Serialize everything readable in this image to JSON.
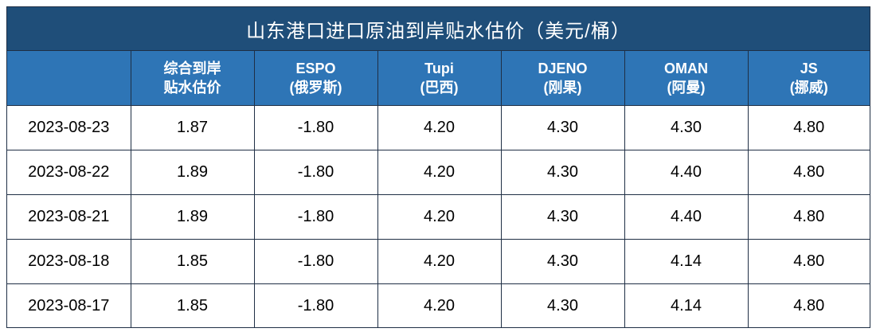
{
  "chart_data": {
    "type": "table",
    "title": "山东港口进口原油到岸贴水估价（美元/桶）",
    "columns": [
      {
        "line1": "",
        "line2": ""
      },
      {
        "line1": "综合到岸",
        "line2": "贴水估价"
      },
      {
        "line1": "ESPO",
        "line2": "(俄罗斯)"
      },
      {
        "line1": "Tupi",
        "line2": "(巴西)"
      },
      {
        "line1": "DJENO",
        "line2": "(刚果)"
      },
      {
        "line1": "OMAN",
        "line2": "(阿曼)"
      },
      {
        "line1": "JS",
        "line2": "(挪威)"
      }
    ],
    "rows": [
      [
        "2023-08-23",
        "1.87",
        "-1.80",
        "4.20",
        "4.30",
        "4.30",
        "4.80"
      ],
      [
        "2023-08-22",
        "1.89",
        "-1.80",
        "4.20",
        "4.30",
        "4.40",
        "4.80"
      ],
      [
        "2023-08-21",
        "1.89",
        "-1.80",
        "4.20",
        "4.30",
        "4.40",
        "4.80"
      ],
      [
        "2023-08-18",
        "1.85",
        "-1.80",
        "4.20",
        "4.30",
        "4.14",
        "4.80"
      ],
      [
        "2023-08-17",
        "1.85",
        "-1.80",
        "4.20",
        "4.30",
        "4.14",
        "4.80"
      ]
    ],
    "colors": {
      "title_bg": "#1f4e79",
      "header_bg": "#2e75b6",
      "header_text": "#ffffff",
      "border": "#1f2f45"
    }
  }
}
